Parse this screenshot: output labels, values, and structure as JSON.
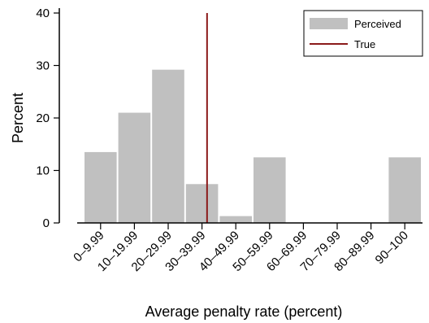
{
  "chart_data": {
    "type": "bar",
    "categories": [
      "0–9.99",
      "10–19.99",
      "20–29.99",
      "30–39.99",
      "40–49.99",
      "50–59.99",
      "60–69.99",
      "70–79.99",
      "80–89.99",
      "90–100"
    ],
    "series": [
      {
        "name": "Perceived",
        "values": [
          13.5,
          21,
          29.2,
          7.4,
          1.3,
          12.5,
          0,
          0,
          0,
          12.5
        ],
        "color": "#c0c0c0"
      }
    ],
    "reference_lines": [
      {
        "name": "True",
        "x": 36.5,
        "color": "#8b1a1a"
      }
    ],
    "xlabel": "Average penalty rate (percent)",
    "ylabel": "Percent",
    "ylim": [
      0,
      40
    ],
    "yticks": [
      0,
      10,
      20,
      30,
      40
    ],
    "grid": false,
    "legend_position": "top-right"
  }
}
